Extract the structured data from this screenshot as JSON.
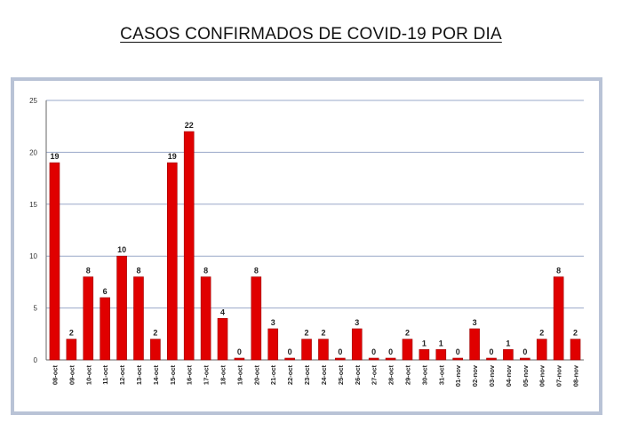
{
  "chart_data": {
    "type": "bar",
    "title": "CASOS CONFIRMADOS DE COVID-19 POR DIA",
    "xlabel": "",
    "ylabel": "",
    "ylim": [
      0,
      25
    ],
    "yticks": [
      0,
      5,
      10,
      15,
      20,
      25
    ],
    "grid": true,
    "legend": "none",
    "bar_color": "#e00000",
    "grid_color": "#9aa8c8",
    "categories": [
      "08-oct",
      "09-oct",
      "10-oct",
      "11-oct",
      "12-oct",
      "13-oct",
      "14-oct",
      "15-oct",
      "16-oct",
      "17-oct",
      "18-oct",
      "19-oct",
      "20-oct",
      "21-oct",
      "22-oct",
      "23-oct",
      "24-oct",
      "25-oct",
      "26-oct",
      "27-oct",
      "28-oct",
      "29-oct",
      "30-oct",
      "31-oct",
      "01-nov",
      "02-nov",
      "03-nov",
      "04-nov",
      "05-nov",
      "06-nov",
      "07-nov",
      "08-nov"
    ],
    "values": [
      19,
      2,
      8,
      6,
      10,
      8,
      2,
      19,
      22,
      8,
      4,
      0,
      8,
      3,
      0,
      2,
      2,
      0,
      3,
      0,
      0,
      2,
      1,
      1,
      0,
      3,
      0,
      1,
      0,
      2,
      8,
      2
    ]
  }
}
